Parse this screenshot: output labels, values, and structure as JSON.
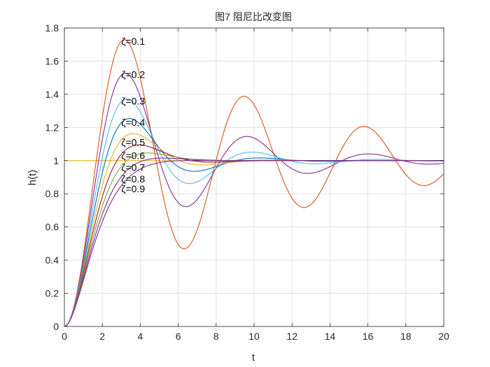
{
  "chart_data": {
    "type": "line",
    "title": "图7 阻尼比改变图",
    "xlabel": "t",
    "ylabel": "h(t)",
    "xlim": [
      0,
      20
    ],
    "ylim": [
      0,
      1.8
    ],
    "xticks": [
      0,
      2,
      4,
      6,
      8,
      10,
      12,
      14,
      16,
      18,
      20
    ],
    "yticks": [
      0,
      0.2,
      0.4,
      0.6,
      0.8,
      1,
      1.2,
      1.4,
      1.6,
      1.8
    ],
    "xtick_labels": [
      "0",
      "2",
      "4",
      "6",
      "8",
      "10",
      "12",
      "14",
      "16",
      "18",
      "20"
    ],
    "ytick_labels": [
      "0",
      "0.2",
      "0.4",
      "0.6",
      "0.8",
      "1",
      "1.2",
      "1.4",
      "1.6",
      "1.8"
    ],
    "grid": true,
    "omega_n": 1,
    "reference_line": {
      "value": 1,
      "color": "#EDB120"
    },
    "series": [
      {
        "name": "ζ=0.1",
        "zeta": 0.1,
        "color": "#D95319",
        "label_at": [
          3.0,
          1.72
        ]
      },
      {
        "name": "ζ=0.2",
        "zeta": 0.2,
        "color": "#7E2F8E",
        "label_at": [
          3.0,
          1.52
        ]
      },
      {
        "name": "ζ=0.3",
        "zeta": 0.3,
        "color": "#4DBEEE",
        "label_at": [
          3.0,
          1.36
        ]
      },
      {
        "name": "ζ=0.4",
        "zeta": 0.4,
        "color": "#0072BD",
        "label_at": [
          3.0,
          1.23
        ]
      },
      {
        "name": "ζ=0.5",
        "zeta": 0.5,
        "color": "#EDB120",
        "label_at": [
          3.0,
          1.11
        ]
      },
      {
        "name": "ζ=0.6",
        "zeta": 0.6,
        "color": "#A2142F",
        "label_at": [
          3.0,
          1.03
        ]
      },
      {
        "name": "ζ=0.7",
        "zeta": 0.7,
        "color": "#77AC30",
        "label_at": [
          3.0,
          0.96
        ]
      },
      {
        "name": "ζ=0.8",
        "zeta": 0.8,
        "color": "#7E2F8E",
        "label_at": [
          3.0,
          0.89
        ]
      },
      {
        "name": "ζ=0.9",
        "zeta": 0.9,
        "color": "#7E2F8E",
        "label_at": [
          3.0,
          0.83
        ]
      }
    ]
  }
}
